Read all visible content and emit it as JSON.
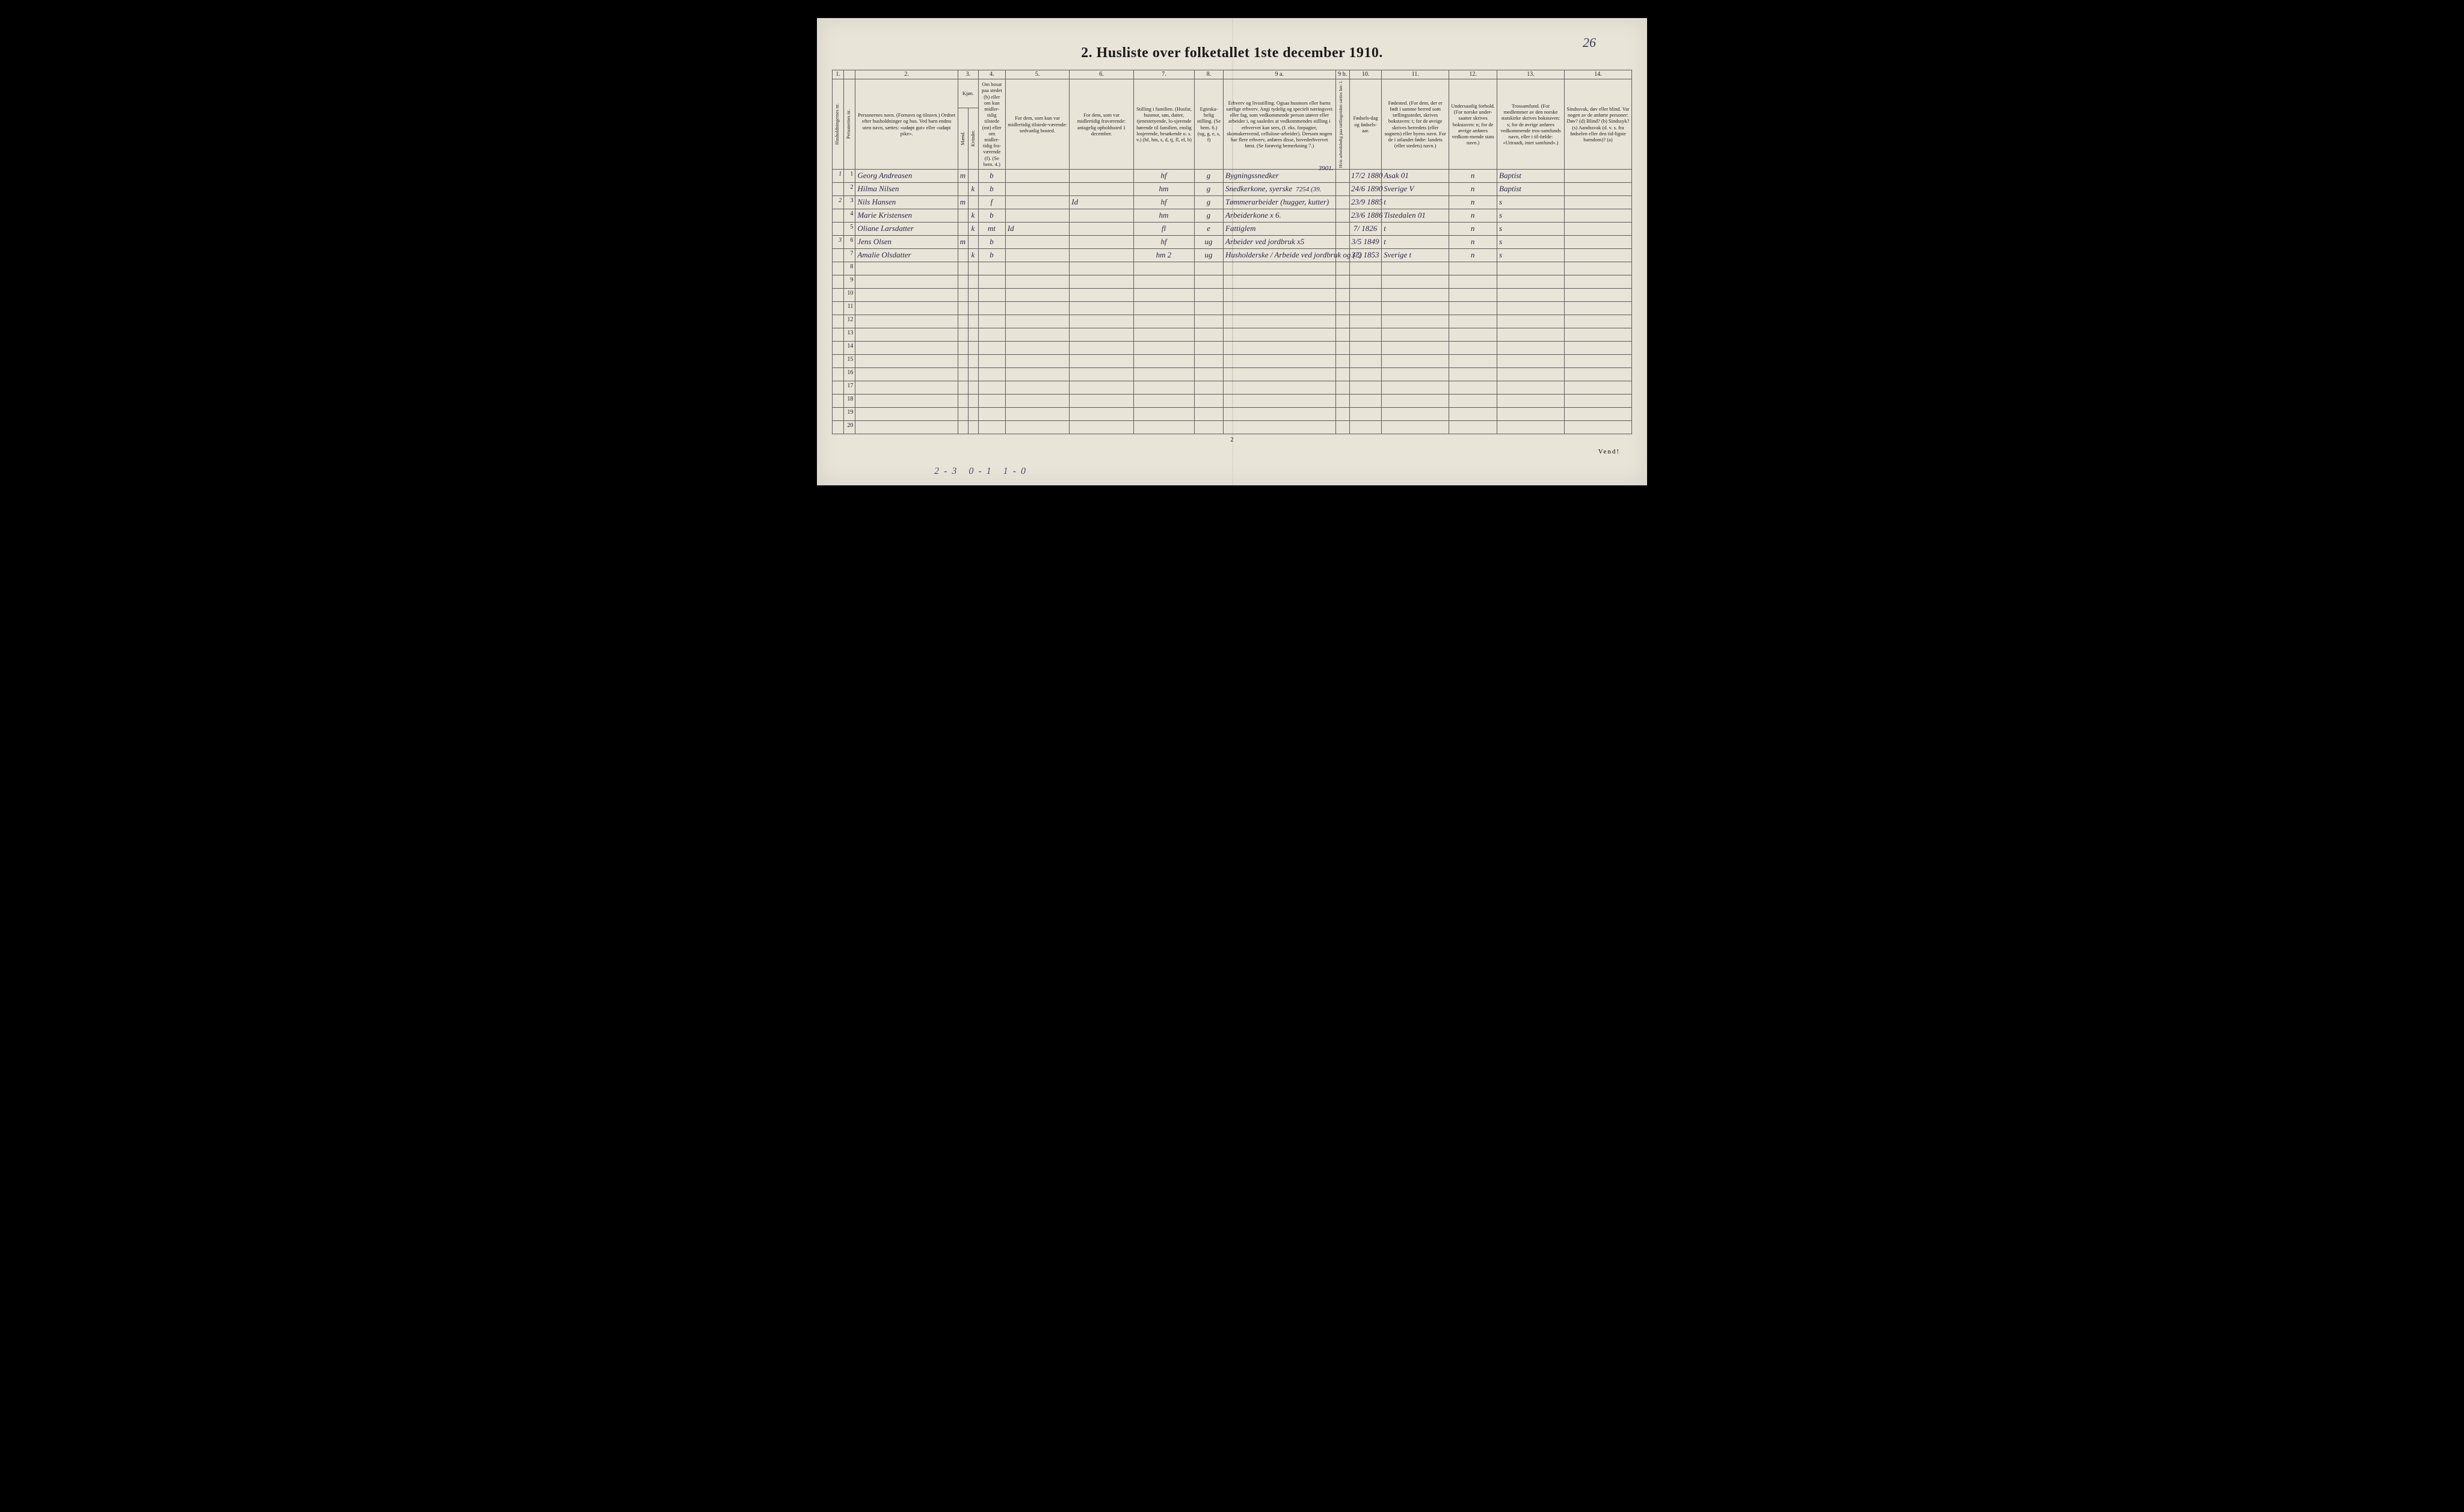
{
  "page_number_handwritten": "26",
  "title": "2.  Husliste over folketallet 1ste december 1910.",
  "footer_vend": "Vend!",
  "footer_pagenum": "2",
  "bottom_annot": "2-3    0-1     1-0",
  "col_numbers": [
    "1.",
    "",
    "2.",
    "3.",
    "",
    "4.",
    "5.",
    "6.",
    "7.",
    "8.",
    "9 a.",
    "9 b.",
    "10.",
    "11.",
    "12.",
    "13.",
    "14."
  ],
  "headers": {
    "c1": "Husholdningernes nr.",
    "c1b": "Personernes nr.",
    "c2": "Personernes navn.\n(Fornavn og tilnavn.)\nOrdnet efter husholdninger og hus.\nVed barn endnu uten navn, sættes: «udøpt gut» eller «udøpt pike».",
    "c3a": "Kjøn.",
    "c3m": "Mænd.",
    "c3k": "Kvinder.",
    "c4": "Om bosat paa stedet (b) eller om kun midler-tidig tilstede (mt) eller om midler-tidig fra-værende (f).\n(Se bem. 4.)",
    "c5": "For dem, som kun var midlertidig tilstede-værende:\nsedvanlig bosted.",
    "c6": "For dem, som var midlertidig fraværende:\nantagelig opholdssted 1 december.",
    "c7": "Stilling i familien.\n(Husfar, husmor, søn, datter, tjenestetyende, lo-sjerende hørende til familien, enslig losjerende, besøkende o. s. v.)\n(hf, hm, s, d, tj, fl, el, b)",
    "c8": "Egteska-belig stilling.\n(Se bem. 6.)\n(ug, g, e, s, f)",
    "c9a": "Erhverv og livsstilling.\nOgsaa husmors eller barns særlige erhverv. Angi tydelig og specielt næringsvei eller fag, som vedkommende person utøver eller arbeider i, og saaledes at vedkommendes stilling i erhvervet kan sees, (f. eks. forpagter, skomakersvend, cellulose-arbeider). Dersom nogen har flere erhverv, anføres disse, hovederhvervet først.\n(Se forøvrig bemerkning 7.)",
    "c9b": "Hvis arbeidsledig paa tællingstiden sættes her: l.",
    "c10": "Fødsels-dag og fødsels-aar.",
    "c11": "Fødested.\n(For dem, der er født i samme herred som tællingsstedet, skrives bokstaven: t; for de øvrige skrives herredets (eller sognets) eller byens navn. For de i utlandet fødte: landets (eller stedets) navn.)",
    "c12": "Undersaatlig forhold.\n(For norske under-saatter skrives bokstaven: n; for de øvrige anføres vedkom-mende stats navn.)",
    "c13": "Trossamfund.\n(For medlemmer av den norske statskirke skrives bokstaven: s; for de øvrige anføres vedkommende tros-samfunds navn, eller i til-fælde: «Uttraadt, intet samfund».)",
    "c14": "Sindssvak, døv eller blind.\nVar nogen av de anførte personer:\nDøv? (d)\nBlind? (b)\nSindssyk? (s)\nAandssvak (d. v. s. fra fødselen eller den tid-ligste barndom)? (a)"
  },
  "colwidths": {
    "c1": 18,
    "c1b": 18,
    "c2": 160,
    "c3m": 16,
    "c3k": 16,
    "c4": 42,
    "c5": 100,
    "c6": 100,
    "c7": 95,
    "c8": 45,
    "c9a": 175,
    "c9b": 22,
    "c10": 50,
    "c11": 105,
    "c12": 75,
    "c13": 105,
    "c14": 105
  },
  "annotations": {
    "above_row1_c9": "3901.",
    "row2_c9_extra": "7254 (39."
  },
  "rows": [
    {
      "hh": "1",
      "pn": "1",
      "name": "Georg Andreasen",
      "m": "m",
      "k": "",
      "bos": "b",
      "c5": "",
      "c6": "",
      "c7": "hf",
      "c8": "g",
      "c9": "Bygningssnedker",
      "c10": "17/2 1880",
      "c11": "Asak 01",
      "c12": "n",
      "c13": "Baptist",
      "c14": ""
    },
    {
      "hh": "",
      "pn": "2",
      "name": "Hilma Nilsen",
      "m": "",
      "k": "k",
      "bos": "b",
      "c5": "",
      "c6": "",
      "c7": "hm",
      "c8": "g",
      "c9": "Snedkerkone, syerske",
      "c10": "24/6 1890",
      "c11": "Sverige V",
      "c12": "n",
      "c13": "Baptist",
      "c14": ""
    },
    {
      "hh": "2",
      "pn": "3",
      "name": "Nils Hansen",
      "m": "m",
      "k": "",
      "bos": "f",
      "c5": "",
      "c6": "Id",
      "c7": "hf",
      "c8": "g",
      "c9": "Tømmerarbeider (hugger, kutter)",
      "c10": "23/9 1885",
      "c11": "t",
      "c12": "n",
      "c13": "s",
      "c14": ""
    },
    {
      "hh": "",
      "pn": "4",
      "name": "Marie Kristensen",
      "m": "",
      "k": "k",
      "bos": "b",
      "c5": "",
      "c6": "",
      "c7": "hm",
      "c8": "g",
      "c9": "Arbeiderkone     x 6.",
      "c10": "23/6 1886",
      "c11": "Tistedalen 01",
      "c12": "n",
      "c13": "s",
      "c14": ""
    },
    {
      "hh": "",
      "pn": "5",
      "name": "Oliane Larsdatter",
      "m": "",
      "k": "k",
      "bos": "mt",
      "c5": "Id",
      "c6": "",
      "c7": "fl",
      "c8": "e",
      "c9": "Fattiglem",
      "c10": "7/ 1826",
      "c11": "t",
      "c12": "n",
      "c13": "s",
      "c14": ""
    },
    {
      "hh": "3",
      "pn": "6",
      "name": "Jens Olsen",
      "m": "m",
      "k": "",
      "bos": "b",
      "c5": "",
      "c6": "",
      "c7": "hf",
      "c8": "ug",
      "c9": "Arbeider ved jordbruk  x5",
      "c10": "3/5 1849",
      "c11": "t",
      "c12": "n",
      "c13": "s",
      "c14": ""
    },
    {
      "hh": "",
      "pn": "7",
      "name": "Amalie Olsdatter",
      "m": "",
      "k": "k",
      "bos": "b",
      "c5": "",
      "c6": "",
      "c7": "hm 2",
      "c8": "ug",
      "c9": "Husholderske / Arbeide ved jordbruk og (?)",
      "c10": "3/2 1853",
      "c11": "Sverige t",
      "c12": "n",
      "c13": "s",
      "c14": ""
    }
  ],
  "empty_rows": [
    8,
    9,
    10,
    11,
    12,
    13,
    14,
    15,
    16,
    17,
    18,
    19,
    20
  ]
}
